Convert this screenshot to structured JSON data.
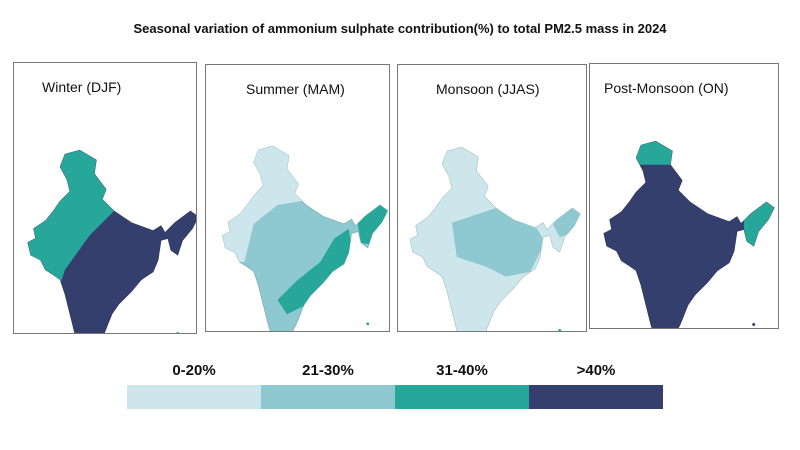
{
  "title": "Seasonal variation of ammonium sulphate contribution(%) to total PM2.5 mass in 2024",
  "panels": [
    {
      "label": "Winter (DJF)",
      "dominant_class": ">40%"
    },
    {
      "label": "Summer (MAM)",
      "dominant_class": "21-30%"
    },
    {
      "label": "Monsoon (JJAS)",
      "dominant_class": "0-20%"
    },
    {
      "label": "Post-Monsoon (ON)",
      "dominant_class": ">40%"
    }
  ],
  "legend": [
    {
      "label": "0-20%",
      "color": "#cde6eb"
    },
    {
      "label": "21-30%",
      "color": "#8ec8d0"
    },
    {
      "label": "31-40%",
      "color": "#27a69a"
    },
    {
      "label": ">40%",
      "color": "#343f6e"
    }
  ]
}
